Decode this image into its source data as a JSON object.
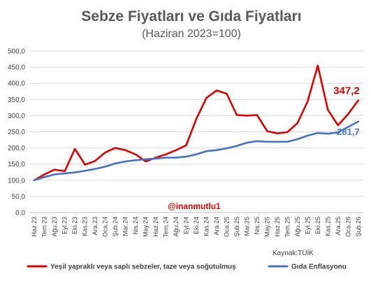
{
  "chart_data": {
    "type": "line",
    "title": "Sebze Fiyatları ve Gıda Fiyatları",
    "subtitle": "(Haziran 2023=100)",
    "ylim": [
      0,
      500
    ],
    "yticks": [
      "0,0",
      "50,0",
      "100,0",
      "150,0",
      "200,0",
      "250,0",
      "300,0",
      "350,0",
      "400,0",
      "450,0",
      "500,0"
    ],
    "grid": true,
    "legend_position": "bottom",
    "x_labels": [
      "Haz.23",
      "Tem.23",
      "Ağu.23",
      "Eyl.23",
      "Eki.23",
      "Kas.23",
      "Ara.23",
      "Oca.24",
      "Şub.24",
      "Mar.24",
      "Nis.24",
      "May.24",
      "Haz.24",
      "Tem.24",
      "Ağu.24",
      "Eyl.24",
      "Eki.24",
      "Kas.24",
      "Ara.24",
      "Oca.25",
      "Şub.25",
      "Mar.25",
      "Nis.25",
      "May.25",
      "Haz.25",
      "Tem.25",
      "Ağu.25",
      "Eyl.25",
      "Eki.25",
      "Kas.25",
      "Ara.25",
      "Oca.26",
      "Şub.26"
    ],
    "series": [
      {
        "name": "Yeşil yapraklı veya saplı sebzeler, taze veya soğutulmuş",
        "color": "#e00000",
        "values": [
          100,
          118,
          133,
          128,
          197,
          148,
          160,
          186,
          200,
          193,
          180,
          158,
          170,
          180,
          193,
          208,
          290,
          355,
          378,
          368,
          302,
          300,
          302,
          252,
          245,
          249,
          277,
          344,
          455,
          318,
          270,
          305,
          347.2
        ],
        "end_label": "347,2"
      },
      {
        "name": "Gıda Enflasyonu",
        "color": "#4472c4",
        "values": [
          100,
          110,
          118,
          121,
          124,
          129,
          135,
          142,
          152,
          158,
          162,
          165,
          167,
          170,
          170,
          173,
          180,
          190,
          193,
          199,
          206,
          216,
          221,
          219,
          219,
          219,
          227,
          238,
          246,
          244,
          248,
          265,
          281.7
        ],
        "end_label": "281,7"
      }
    ],
    "annotations": [
      "@inanmutlu1"
    ],
    "source": "Kaynak:TÜİK"
  }
}
